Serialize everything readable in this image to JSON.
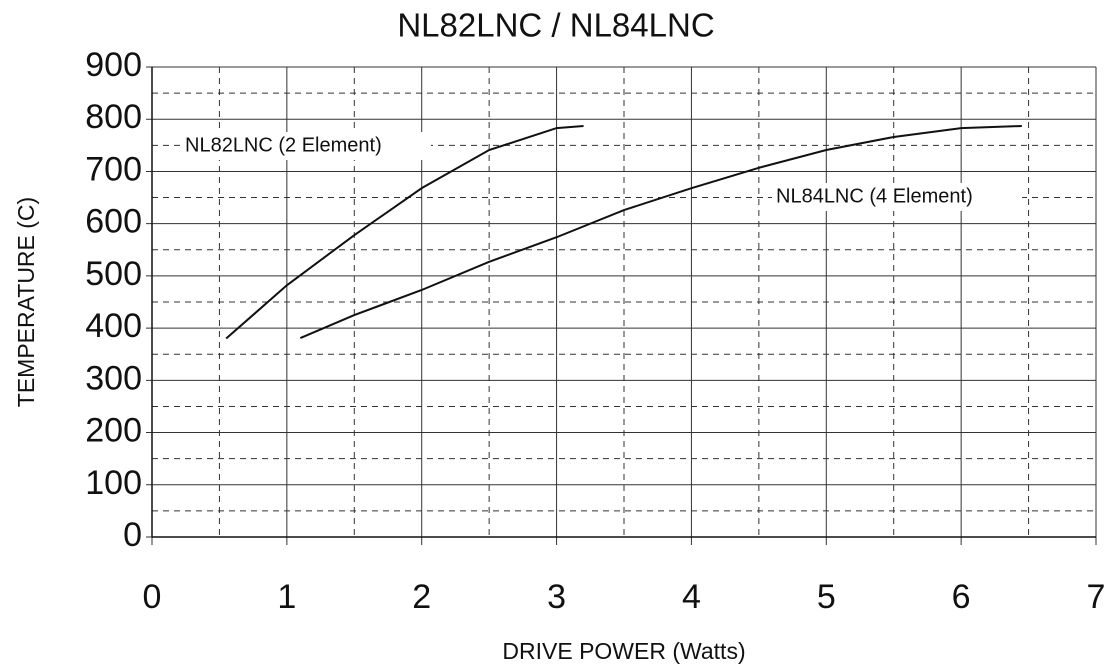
{
  "chart_data": {
    "type": "line",
    "title": "NL82LNC / NL84LNC",
    "x_label": "DRIVE POWER (Watts)",
    "y_label": "TEMPERATURE (C)",
    "xlim": [
      0,
      7
    ],
    "ylim": [
      0,
      900
    ],
    "xticks": [
      0,
      1,
      2,
      3,
      4,
      5,
      6,
      7
    ],
    "yticks": [
      0,
      100,
      200,
      300,
      400,
      500,
      600,
      700,
      800,
      900
    ],
    "x_minor_ticks": [
      0.5,
      1.5,
      2.5,
      3.5,
      4.5,
      5.5,
      6.5
    ],
    "y_minor_ticks": [
      50,
      150,
      250,
      350,
      450,
      550,
      650,
      750,
      850
    ],
    "grid": true,
    "series": [
      {
        "name": "NL82LNC (2 Element)",
        "color": "#111111",
        "x": [
          0.55,
          1,
          1.5,
          2,
          2.5,
          3,
          3.2
        ],
        "values": [
          380,
          482,
          578,
          668,
          741,
          783,
          787
        ]
      },
      {
        "name": "NL84LNC (4 Element)",
        "color": "#111111",
        "x": [
          1.1,
          1.5,
          2,
          2.5,
          3,
          3.5,
          4,
          4.5,
          5,
          5.5,
          6,
          6.45
        ],
        "values": [
          381,
          425,
          473,
          527,
          574,
          626,
          668,
          707,
          741,
          766,
          783,
          787
        ]
      }
    ]
  }
}
